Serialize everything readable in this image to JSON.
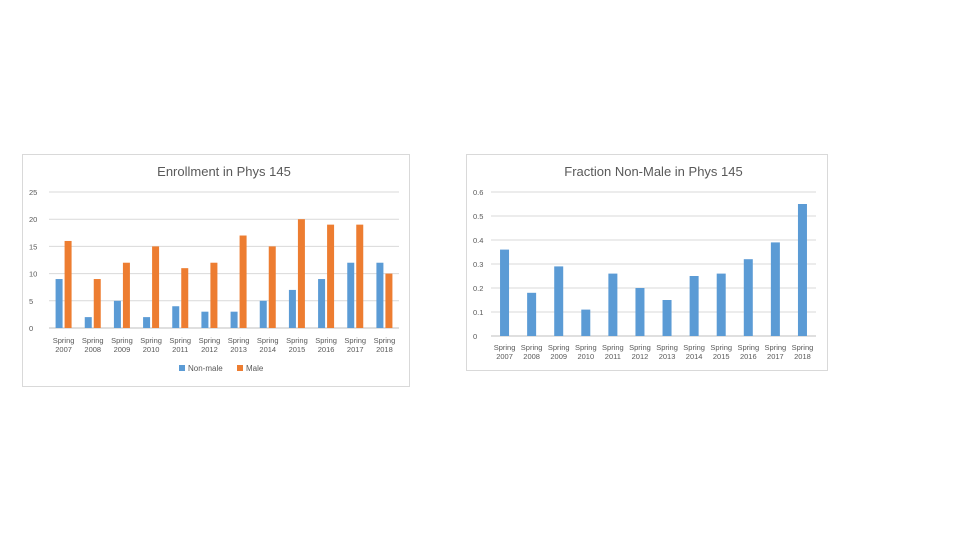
{
  "chart_data": [
    {
      "type": "bar",
      "title": "Enrollment in Phys 145",
      "xlabel": "",
      "ylabel": "",
      "categories": [
        [
          "Spring",
          "2007"
        ],
        [
          "Spring",
          "2008"
        ],
        [
          "Spring",
          "2009"
        ],
        [
          "Spring",
          "2010"
        ],
        [
          "Spring",
          "2011"
        ],
        [
          "Spring",
          "2012"
        ],
        [
          "Spring",
          "2013"
        ],
        [
          "Spring",
          "2014"
        ],
        [
          "Spring",
          "2015"
        ],
        [
          "Spring",
          "2016"
        ],
        [
          "Spring",
          "2017"
        ],
        [
          "Spring",
          "2018"
        ]
      ],
      "series": [
        {
          "name": "Non-male",
          "color": "#5b9bd5",
          "values": [
            9,
            2,
            5,
            2,
            4,
            3,
            3,
            5,
            7,
            9,
            12,
            12
          ]
        },
        {
          "name": "Male",
          "color": "#ed7d31",
          "values": [
            16,
            9,
            12,
            15,
            11,
            12,
            17,
            15,
            20,
            19,
            19,
            10
          ]
        }
      ],
      "ylim": [
        0,
        25
      ],
      "yticks": [
        "0",
        "5",
        "10",
        "15",
        "20",
        "25"
      ],
      "grid": true,
      "legend": "bottom"
    },
    {
      "type": "bar",
      "title": "Fraction Non-Male in Phys 145",
      "xlabel": "",
      "ylabel": "",
      "categories": [
        [
          "Spring",
          "2007"
        ],
        [
          "Spring",
          "2008"
        ],
        [
          "Spring",
          "2009"
        ],
        [
          "Spring",
          "2010"
        ],
        [
          "Spring",
          "2011"
        ],
        [
          "Spring",
          "2012"
        ],
        [
          "Spring",
          "2013"
        ],
        [
          "Spring",
          "2014"
        ],
        [
          "Spring",
          "2015"
        ],
        [
          "Spring",
          "2016"
        ],
        [
          "Spring",
          "2017"
        ],
        [
          "Spring",
          "2018"
        ]
      ],
      "series": [
        {
          "color": "#5b9bd5",
          "values": [
            0.36,
            0.18,
            0.29,
            0.11,
            0.26,
            0.2,
            0.15,
            0.25,
            0.26,
            0.32,
            0.39,
            0.55
          ]
        }
      ],
      "ylim": [
        0,
        0.6
      ],
      "yticks": [
        "0",
        "0.1",
        "0.2",
        "0.3",
        "0.4",
        "0.5",
        "0.6"
      ],
      "grid": true,
      "legend": "none"
    }
  ]
}
